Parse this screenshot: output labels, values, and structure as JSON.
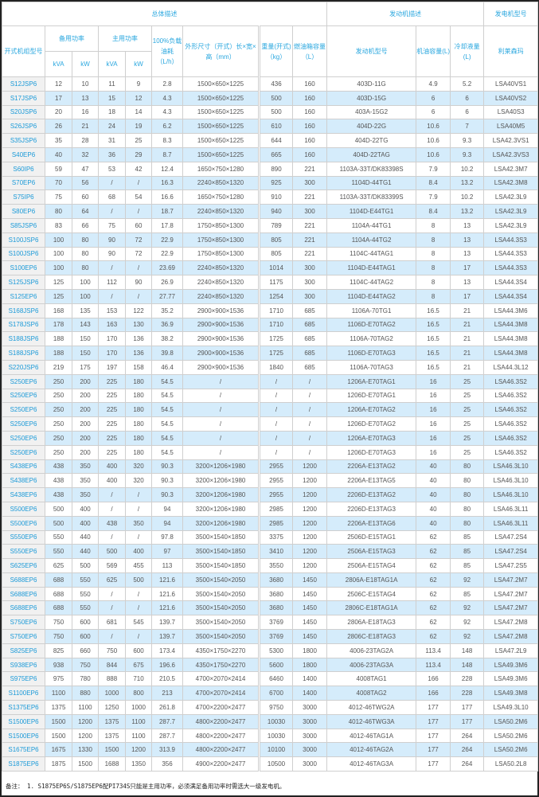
{
  "header": {
    "group_overall": "总体描述",
    "group_engine": "发动机描述",
    "group_alternator": "发电机型号",
    "model": "开式机组型号",
    "standby_power": "备用功率",
    "prime_power": "主用功率",
    "kva": "kVA",
    "kw": "kW",
    "fuel_consumption": "100%负载油耗（L/h）",
    "dimensions": "外形尺寸（开式）长×宽×高（mm）",
    "weight": "重量(开式)（kg）",
    "fuel_tank": "燃油箱容量（L）",
    "engine_model": "发动机型号",
    "oil_capacity": "机油容量(L)",
    "coolant": "冷却液量(L)",
    "alternator": "利莱森玛"
  },
  "rows": [
    [
      "S12JSP6",
      "12",
      "10",
      "11",
      "9",
      "2.8",
      "1500×650×1225",
      "436",
      "160",
      "403D-11G",
      "4.9",
      "5.2",
      "LSA40VS1"
    ],
    [
      "S17JSP6",
      "17",
      "13",
      "15",
      "12",
      "4.3",
      "1500×650×1225",
      "500",
      "160",
      "403D-15G",
      "6",
      "6",
      "LSA40VS2"
    ],
    [
      "S20JSP6",
      "20",
      "16",
      "18",
      "14",
      "4.3",
      "1500×650×1225",
      "500",
      "160",
      "403A-15G2",
      "6",
      "6",
      "LSA40S3"
    ],
    [
      "S26JSP6",
      "26",
      "21",
      "24",
      "19",
      "6.2",
      "1500×650×1225",
      "610",
      "160",
      "404D-22G",
      "10.6",
      "7",
      "LSA40M5"
    ],
    [
      "S35JSP6",
      "35",
      "28",
      "31",
      "25",
      "8.3",
      "1500×650×1225",
      "644",
      "160",
      "404D-22TG",
      "10.6",
      "9.3",
      "LSA42.3VS1"
    ],
    [
      "S40EP6",
      "40",
      "32",
      "36",
      "29",
      "8.7",
      "1500×650×1225",
      "665",
      "160",
      "404D-22TAG",
      "10.6",
      "9.3",
      "LSA42.3VS3"
    ],
    [
      "S60IP6",
      "59",
      "47",
      "53",
      "42",
      "12.4",
      "1650×750×1280",
      "890",
      "221",
      "1103A-33T/DK83398S",
      "7.9",
      "10.2",
      "LSA42.3M7"
    ],
    [
      "S70EP6",
      "70",
      "56",
      "/",
      "/",
      "16.3",
      "2240×850×1320",
      "925",
      "300",
      "1104D-44TG1",
      "8.4",
      "13.2",
      "LSA42.3M8"
    ],
    [
      "S75IP6",
      "75",
      "60",
      "68",
      "54",
      "16.6",
      "1650×750×1280",
      "910",
      "221",
      "1103A-33T/DK83399S",
      "7.9",
      "10.2",
      "LSA42.3L9"
    ],
    [
      "S80EP6",
      "80",
      "64",
      "/",
      "/",
      "18.7",
      "2240×850×1320",
      "940",
      "300",
      "1104D-E44TG1",
      "8.4",
      "13.2",
      "LSA42.3L9"
    ],
    [
      "S85JSP6",
      "83",
      "66",
      "75",
      "60",
      "17.8",
      "1750×850×1300",
      "789",
      "221",
      "1104A-44TG1",
      "8",
      "13",
      "LSA42.3L9"
    ],
    [
      "S100JSP6",
      "100",
      "80",
      "90",
      "72",
      "22.9",
      "1750×850×1300",
      "805",
      "221",
      "1104A-44TG2",
      "8",
      "13",
      "LSA44.3S3"
    ],
    [
      "S100JSP6",
      "100",
      "80",
      "90",
      "72",
      "22.9",
      "1750×850×1300",
      "805",
      "221",
      "1104C-44TAG1",
      "8",
      "13",
      "LSA44.3S3"
    ],
    [
      "S100EP6",
      "100",
      "80",
      "/",
      "/",
      "23.69",
      "2240×850×1320",
      "1014",
      "300",
      "1104D-E44TAG1",
      "8",
      "17",
      "LSA44.3S3"
    ],
    [
      "S125JSP6",
      "125",
      "100",
      "112",
      "90",
      "26.9",
      "2240×850×1320",
      "1175",
      "300",
      "1104C-44TAG2",
      "8",
      "13",
      "LSA44.3S4"
    ],
    [
      "S125EP6",
      "125",
      "100",
      "/",
      "/",
      "27.77",
      "2240×850×1320",
      "1254",
      "300",
      "1104D-E44TAG2",
      "8",
      "17",
      "LSA44.3S4"
    ],
    [
      "S168JSP6",
      "168",
      "135",
      "153",
      "122",
      "35.2",
      "2900×900×1536",
      "1710",
      "685",
      "1106A-70TG1",
      "16.5",
      "21",
      "LSA44.3M6"
    ],
    [
      "S178JSP6",
      "178",
      "143",
      "163",
      "130",
      "36.9",
      "2900×900×1536",
      "1710",
      "685",
      "1106D-E70TAG2",
      "16.5",
      "21",
      "LSA44.3M8"
    ],
    [
      "S188JSP6",
      "188",
      "150",
      "170",
      "136",
      "38.2",
      "2900×900×1536",
      "1725",
      "685",
      "1106A-70TAG2",
      "16.5",
      "21",
      "LSA44.3M8"
    ],
    [
      "S188JSP6",
      "188",
      "150",
      "170",
      "136",
      "39.8",
      "2900×900×1536",
      "1725",
      "685",
      "1106D-E70TAG3",
      "16.5",
      "21",
      "LSA44.3M8"
    ],
    [
      "S220JSP6",
      "219",
      "175",
      "197",
      "158",
      "46.4",
      "2900×900×1536",
      "1840",
      "685",
      "1106A-70TAG3",
      "16.5",
      "21",
      "LSA44.3L12"
    ],
    [
      "S250EP6",
      "250",
      "200",
      "225",
      "180",
      "54.5",
      "/",
      "/",
      "/",
      "1206A-E70TAG1",
      "16",
      "25",
      "LSA46.3S2"
    ],
    [
      "S250EP6",
      "250",
      "200",
      "225",
      "180",
      "54.5",
      "/",
      "/",
      "/",
      "1206D-E70TAG1",
      "16",
      "25",
      "LSA46.3S2"
    ],
    [
      "S250EP6",
      "250",
      "200",
      "225",
      "180",
      "54.5",
      "/",
      "/",
      "/",
      "1206A-E70TAG2",
      "16",
      "25",
      "LSA46.3S2"
    ],
    [
      "S250EP6",
      "250",
      "200",
      "225",
      "180",
      "54.5",
      "/",
      "/",
      "/",
      "1206D-E70TAG2",
      "16",
      "25",
      "LSA46.3S2"
    ],
    [
      "S250EP6",
      "250",
      "200",
      "225",
      "180",
      "54.5",
      "/",
      "/",
      "/",
      "1206A-E70TAG3",
      "16",
      "25",
      "LSA46.3S2"
    ],
    [
      "S250EP6",
      "250",
      "200",
      "225",
      "180",
      "54.5",
      "/",
      "/",
      "/",
      "1206D-E70TAG3",
      "16",
      "25",
      "LSA46.3S2"
    ],
    [
      "S438EP6",
      "438",
      "350",
      "400",
      "320",
      "90.3",
      "3200×1206×1980",
      "2955",
      "1200",
      "2206A-E13TAG2",
      "40",
      "80",
      "LSA46.3L10"
    ],
    [
      "S438EP6",
      "438",
      "350",
      "400",
      "320",
      "90.3",
      "3200×1206×1980",
      "2955",
      "1200",
      "2206A-E13TAG5",
      "40",
      "80",
      "LSA46.3L10"
    ],
    [
      "S438EP6",
      "438",
      "350",
      "/",
      "/",
      "90.3",
      "3200×1206×1980",
      "2955",
      "1200",
      "2206D-E13TAG2",
      "40",
      "80",
      "LSA46.3L10"
    ],
    [
      "S500EP6",
      "500",
      "400",
      "/",
      "/",
      "94",
      "3200×1206×1980",
      "2985",
      "1200",
      "2206D-E13TAG3",
      "40",
      "80",
      "LSA46.3L11"
    ],
    [
      "S500EP6",
      "500",
      "400",
      "438",
      "350",
      "94",
      "3200×1206×1980",
      "2985",
      "1200",
      "2206A-E13TAG6",
      "40",
      "80",
      "LSA46.3L11"
    ],
    [
      "S550EP6",
      "550",
      "440",
      "/",
      "/",
      "97.8",
      "3500×1540×1850",
      "3375",
      "1200",
      "2506D-E15TAG1",
      "62",
      "85",
      "LSA47.2S4"
    ],
    [
      "S550EP6",
      "550",
      "440",
      "500",
      "400",
      "97",
      "3500×1540×1850",
      "3410",
      "1200",
      "2506A-E15TAG3",
      "62",
      "85",
      "LSA47.2S4"
    ],
    [
      "S625EP6",
      "625",
      "500",
      "569",
      "455",
      "113",
      "3500×1540×1850",
      "3550",
      "1200",
      "2506A-E15TAG4",
      "62",
      "85",
      "LSA47.2S5"
    ],
    [
      "S688EP6",
      "688",
      "550",
      "625",
      "500",
      "121.6",
      "3500×1540×2050",
      "3680",
      "1450",
      "2806A-E18TAG1A",
      "62",
      "92",
      "LSA47.2M7"
    ],
    [
      "S688EP6",
      "688",
      "550",
      "/",
      "/",
      "121.6",
      "3500×1540×2050",
      "3680",
      "1450",
      "2506C-E15TAG4",
      "62",
      "85",
      "LSA47.2M7"
    ],
    [
      "S688EP6",
      "688",
      "550",
      "/",
      "/",
      "121.6",
      "3500×1540×2050",
      "3680",
      "1450",
      "2806C-E18TAG1A",
      "62",
      "92",
      "LSA47.2M7"
    ],
    [
      "S750EP6",
      "750",
      "600",
      "681",
      "545",
      "139.7",
      "3500×1540×2050",
      "3769",
      "1450",
      "2806A-E18TAG3",
      "62",
      "92",
      "LSA47.2M8"
    ],
    [
      "S750EP6",
      "750",
      "600",
      "/",
      "/",
      "139.7",
      "3500×1540×2050",
      "3769",
      "1450",
      "2806C-E18TAG3",
      "62",
      "92",
      "LSA47.2M8"
    ],
    [
      "S825EP6",
      "825",
      "660",
      "750",
      "600",
      "173.4",
      "4350×1750×2270",
      "5300",
      "1800",
      "4006-23TAG2A",
      "113.4",
      "148",
      "LSA47.2L9"
    ],
    [
      "S938EP6",
      "938",
      "750",
      "844",
      "675",
      "196.6",
      "4350×1750×2270",
      "5600",
      "1800",
      "4006-23TAG3A",
      "113.4",
      "148",
      "LSA49.3M6"
    ],
    [
      "S975EP6",
      "975",
      "780",
      "888",
      "710",
      "210.5",
      "4700×2070×2414",
      "6460",
      "1400",
      "4008TAG1",
      "166",
      "228",
      "LSA49.3M6"
    ],
    [
      "S1100EP6",
      "1100",
      "880",
      "1000",
      "800",
      "213",
      "4700×2070×2414",
      "6700",
      "1400",
      "4008TAG2",
      "166",
      "228",
      "LSA49.3M8"
    ],
    [
      "S1375EP6",
      "1375",
      "1100",
      "1250",
      "1000",
      "261.8",
      "4700×2200×2477",
      "9750",
      "3000",
      "4012-46TWG2A",
      "177",
      "177",
      "LSA49.3L10"
    ],
    [
      "S1500EP6",
      "1500",
      "1200",
      "1375",
      "1100",
      "287.7",
      "4800×2200×2477",
      "10030",
      "3000",
      "4012-46TWG3A",
      "177",
      "177",
      "LSA50.2M6"
    ],
    [
      "S1500EP6",
      "1500",
      "1200",
      "1375",
      "1100",
      "287.7",
      "4800×2200×2477",
      "10030",
      "3000",
      "4012-46TAG1A",
      "177",
      "264",
      "LSA50.2M6"
    ],
    [
      "S1675EP6",
      "1675",
      "1330",
      "1500",
      "1200",
      "313.9",
      "4800×2200×2477",
      "10100",
      "3000",
      "4012-46TAG2A",
      "177",
      "264",
      "LSA50.2M6"
    ],
    [
      "S1875EP6",
      "1875",
      "1500",
      "1688",
      "1350",
      "356",
      "4900×2200×2477",
      "10500",
      "3000",
      "4012-46TAG3A",
      "177",
      "264",
      "LSA50.2L8"
    ]
  ],
  "note": "备注： 1. S1875EP6S/S1875EP6配PI734S只能是主用功率，必须满足备用功率时需选大一级发电机。",
  "colors": {
    "header_text": "#2aa7df",
    "model_link": "#1b9ad8",
    "row_alt": "#d5ecfb",
    "model_cell_bg": "#f1f1f1"
  }
}
